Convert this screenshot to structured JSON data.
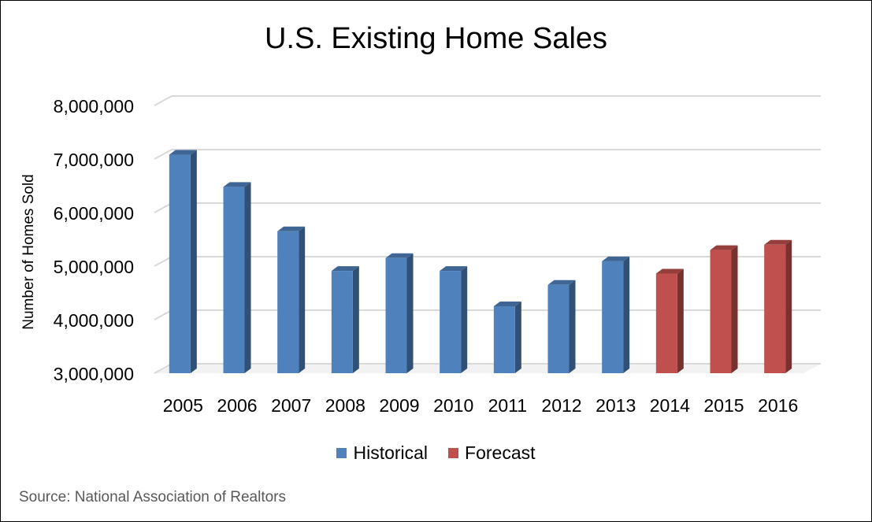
{
  "chart_data": {
    "type": "bar",
    "title": "U.S. Existing Home Sales",
    "ylabel": "Number of Homes Sold",
    "xlabel": "",
    "ylim": [
      3000000,
      8000000
    ],
    "yticks": [
      "8,000,000",
      "7,000,000",
      "6,000,000",
      "5,000,000",
      "4,000,000",
      "3,000,000"
    ],
    "ytick_values": [
      8000000,
      7000000,
      6000000,
      5000000,
      4000000,
      3000000
    ],
    "categories": [
      "2005",
      "2006",
      "2007",
      "2008",
      "2009",
      "2010",
      "2011",
      "2012",
      "2013",
      "2014",
      "2015",
      "2016"
    ],
    "values": [
      7080000,
      6480000,
      5650000,
      4910000,
      5150000,
      4910000,
      4250000,
      4650000,
      5090000,
      4860000,
      5300000,
      5400000
    ],
    "series_by_category": [
      "Historical",
      "Historical",
      "Historical",
      "Historical",
      "Historical",
      "Historical",
      "Historical",
      "Historical",
      "Historical",
      "Forecast",
      "Forecast",
      "Forecast"
    ],
    "legend": [
      {
        "name": "Historical",
        "color": "#4f81bd"
      },
      {
        "name": "Forecast",
        "color": "#c0504d"
      }
    ],
    "grid": true,
    "legend_position": "bottom",
    "style": "3d-column"
  },
  "source": "Source: National Association of Realtors"
}
